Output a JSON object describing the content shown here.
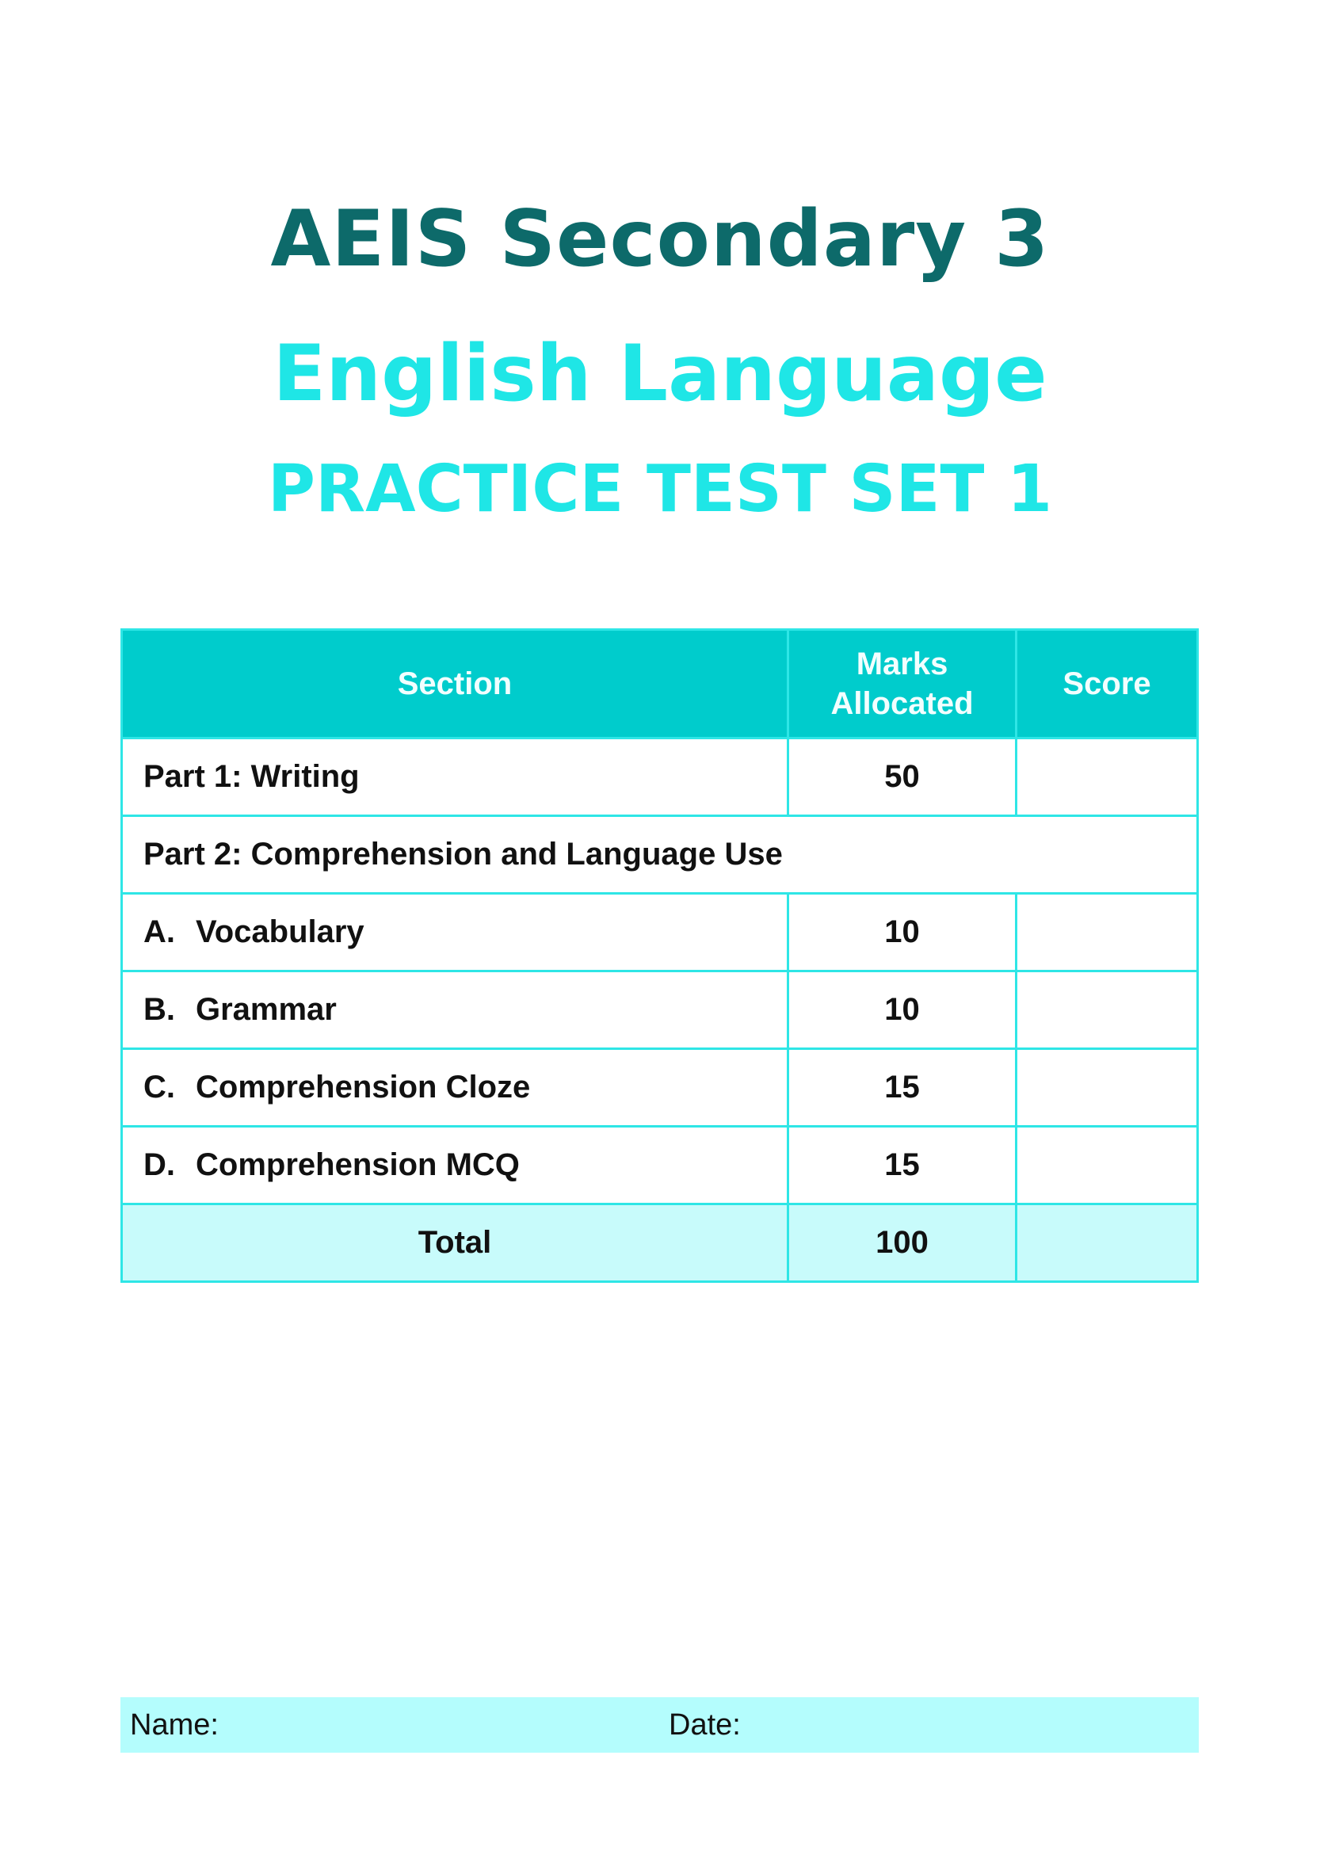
{
  "title": {
    "line1": "AEIS Secondary 3",
    "line2": "English Language",
    "line3": "PRACTICE TEST SET 1"
  },
  "table": {
    "headers": {
      "section": "Section",
      "marks": "Marks Allocated",
      "score": "Score"
    },
    "rows": [
      {
        "section": "Part 1: Writing",
        "marks": "50",
        "score": ""
      },
      {
        "section": "Part 2: Comprehension and Language Use"
      },
      {
        "letter": "A.",
        "section": "Vocabulary",
        "marks": "10",
        "score": ""
      },
      {
        "letter": "B.",
        "section": "Grammar",
        "marks": "10",
        "score": ""
      },
      {
        "letter": "C.",
        "section": "Comprehension Cloze",
        "marks": "15",
        "score": ""
      },
      {
        "letter": "D.",
        "section": "Comprehension MCQ",
        "marks": "15",
        "score": ""
      }
    ],
    "total": {
      "label": "Total",
      "marks": "100",
      "score": ""
    }
  },
  "footer": {
    "name_label": "Name:",
    "date_label": "Date:"
  },
  "colors": {
    "title_dark": "#0d6a6a",
    "title_cyan": "#1fe6e6",
    "header_bg": "#00cccc",
    "border": "#2ee6e6",
    "total_bg": "#c8fbfb",
    "namebar_bg": "#b4fdfd"
  }
}
